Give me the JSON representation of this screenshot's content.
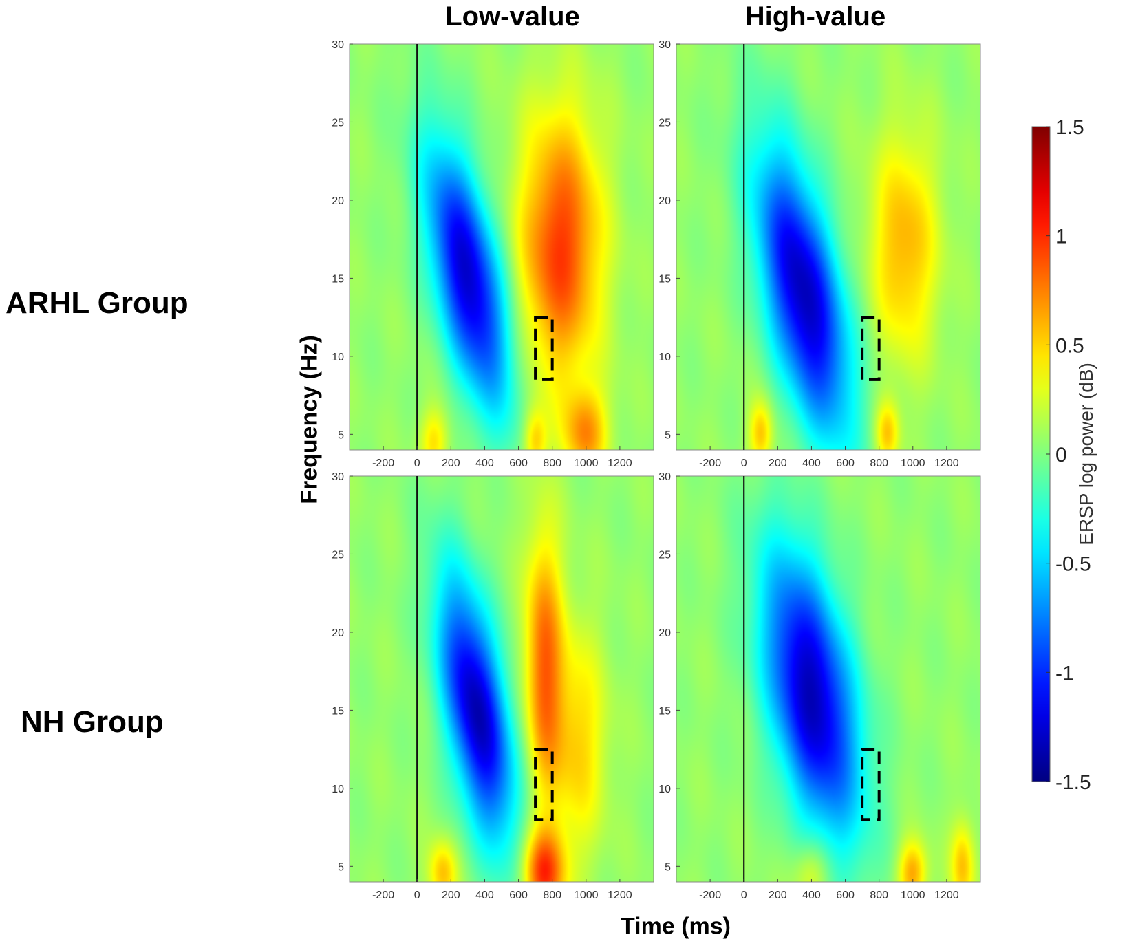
{
  "chart_data": {
    "type": "heatmap",
    "title": "",
    "column_titles": [
      "Low-value",
      "High-value"
    ],
    "row_titles": [
      "ARHL Group",
      "NH Group"
    ],
    "xlabel": "Time (ms)",
    "ylabel": "Frequency (Hz)",
    "x_ticks": [
      -200,
      0,
      200,
      400,
      600,
      800,
      1000,
      1200
    ],
    "y_ticks": [
      5,
      10,
      15,
      20,
      25,
      30
    ],
    "xlim": [
      -400,
      1400
    ],
    "ylim": [
      4,
      30
    ],
    "stimulus_onset_ms": 0,
    "colorbar": {
      "label": "ERSP log power (dB)",
      "ticks": [
        1.5,
        1,
        0.5,
        0,
        -0.5,
        -1,
        -1.5
      ],
      "range": [
        -1.5,
        1.5
      ],
      "colormap": "jet"
    },
    "panels": [
      {
        "row": "ARHL Group",
        "column": "Low-value",
        "highlight_window": {
          "t": [
            700,
            800
          ],
          "f": [
            8.5,
            12.5
          ]
        },
        "blobs": [
          {
            "t": 300,
            "f": 15,
            "st": 140,
            "sf": 6,
            "amp": -1.35,
            "tilt": -18
          },
          {
            "t": 850,
            "f": 17,
            "st": 170,
            "sf": 6,
            "amp": 0.9,
            "tilt": 0
          },
          {
            "t": 1000,
            "f": 5,
            "st": 90,
            "sf": 2,
            "amp": 0.6,
            "tilt": 0
          },
          {
            "t": 700,
            "f": 4.5,
            "st": 50,
            "sf": 1.5,
            "amp": 0.5,
            "tilt": 0
          },
          {
            "t": 100,
            "f": 4.5,
            "st": 60,
            "sf": 1.5,
            "amp": 0.4,
            "tilt": 0
          }
        ]
      },
      {
        "row": "ARHL Group",
        "column": "High-value",
        "highlight_window": {
          "t": [
            700,
            800
          ],
          "f": [
            8.5,
            12.5
          ]
        },
        "blobs": [
          {
            "t": 350,
            "f": 14,
            "st": 160,
            "sf": 6.5,
            "amp": -1.4,
            "tilt": -18
          },
          {
            "t": 950,
            "f": 17,
            "st": 140,
            "sf": 5,
            "amp": 0.55,
            "tilt": 0
          },
          {
            "t": 850,
            "f": 5,
            "st": 50,
            "sf": 1.5,
            "amp": 0.5,
            "tilt": 0
          },
          {
            "t": 100,
            "f": 5,
            "st": 50,
            "sf": 1.5,
            "amp": 0.5,
            "tilt": 0
          }
        ]
      },
      {
        "row": "NH Group",
        "column": "Low-value",
        "highlight_window": {
          "t": [
            700,
            800
          ],
          "f": [
            8,
            12.5
          ]
        },
        "blobs": [
          {
            "t": 350,
            "f": 15,
            "st": 130,
            "sf": 6,
            "amp": -1.4,
            "tilt": -15
          },
          {
            "t": 750,
            "f": 18,
            "st": 80,
            "sf": 6,
            "amp": 0.75,
            "tilt": 0
          },
          {
            "t": 950,
            "f": 13,
            "st": 120,
            "sf": 5,
            "amp": 0.45,
            "tilt": 0
          },
          {
            "t": 750,
            "f": 4.5,
            "st": 90,
            "sf": 2,
            "amp": 0.9,
            "tilt": 0
          },
          {
            "t": 150,
            "f": 4.5,
            "st": 60,
            "sf": 1.5,
            "amp": 0.5,
            "tilt": 0
          }
        ]
      },
      {
        "row": "NH Group",
        "column": "High-value",
        "highlight_window": {
          "t": [
            700,
            800
          ],
          "f": [
            8,
            12.5
          ]
        },
        "blobs": [
          {
            "t": 400,
            "f": 16,
            "st": 180,
            "sf": 6.5,
            "amp": -1.4,
            "tilt": -15
          },
          {
            "t": 1000,
            "f": 4.5,
            "st": 60,
            "sf": 1.5,
            "amp": 0.6,
            "tilt": 0
          },
          {
            "t": 1300,
            "f": 5,
            "st": 50,
            "sf": 2,
            "amp": 0.5,
            "tilt": 0
          },
          {
            "t": 400,
            "f": 4.5,
            "st": 80,
            "sf": 1.5,
            "amp": 0.35,
            "tilt": 0
          }
        ]
      }
    ]
  }
}
